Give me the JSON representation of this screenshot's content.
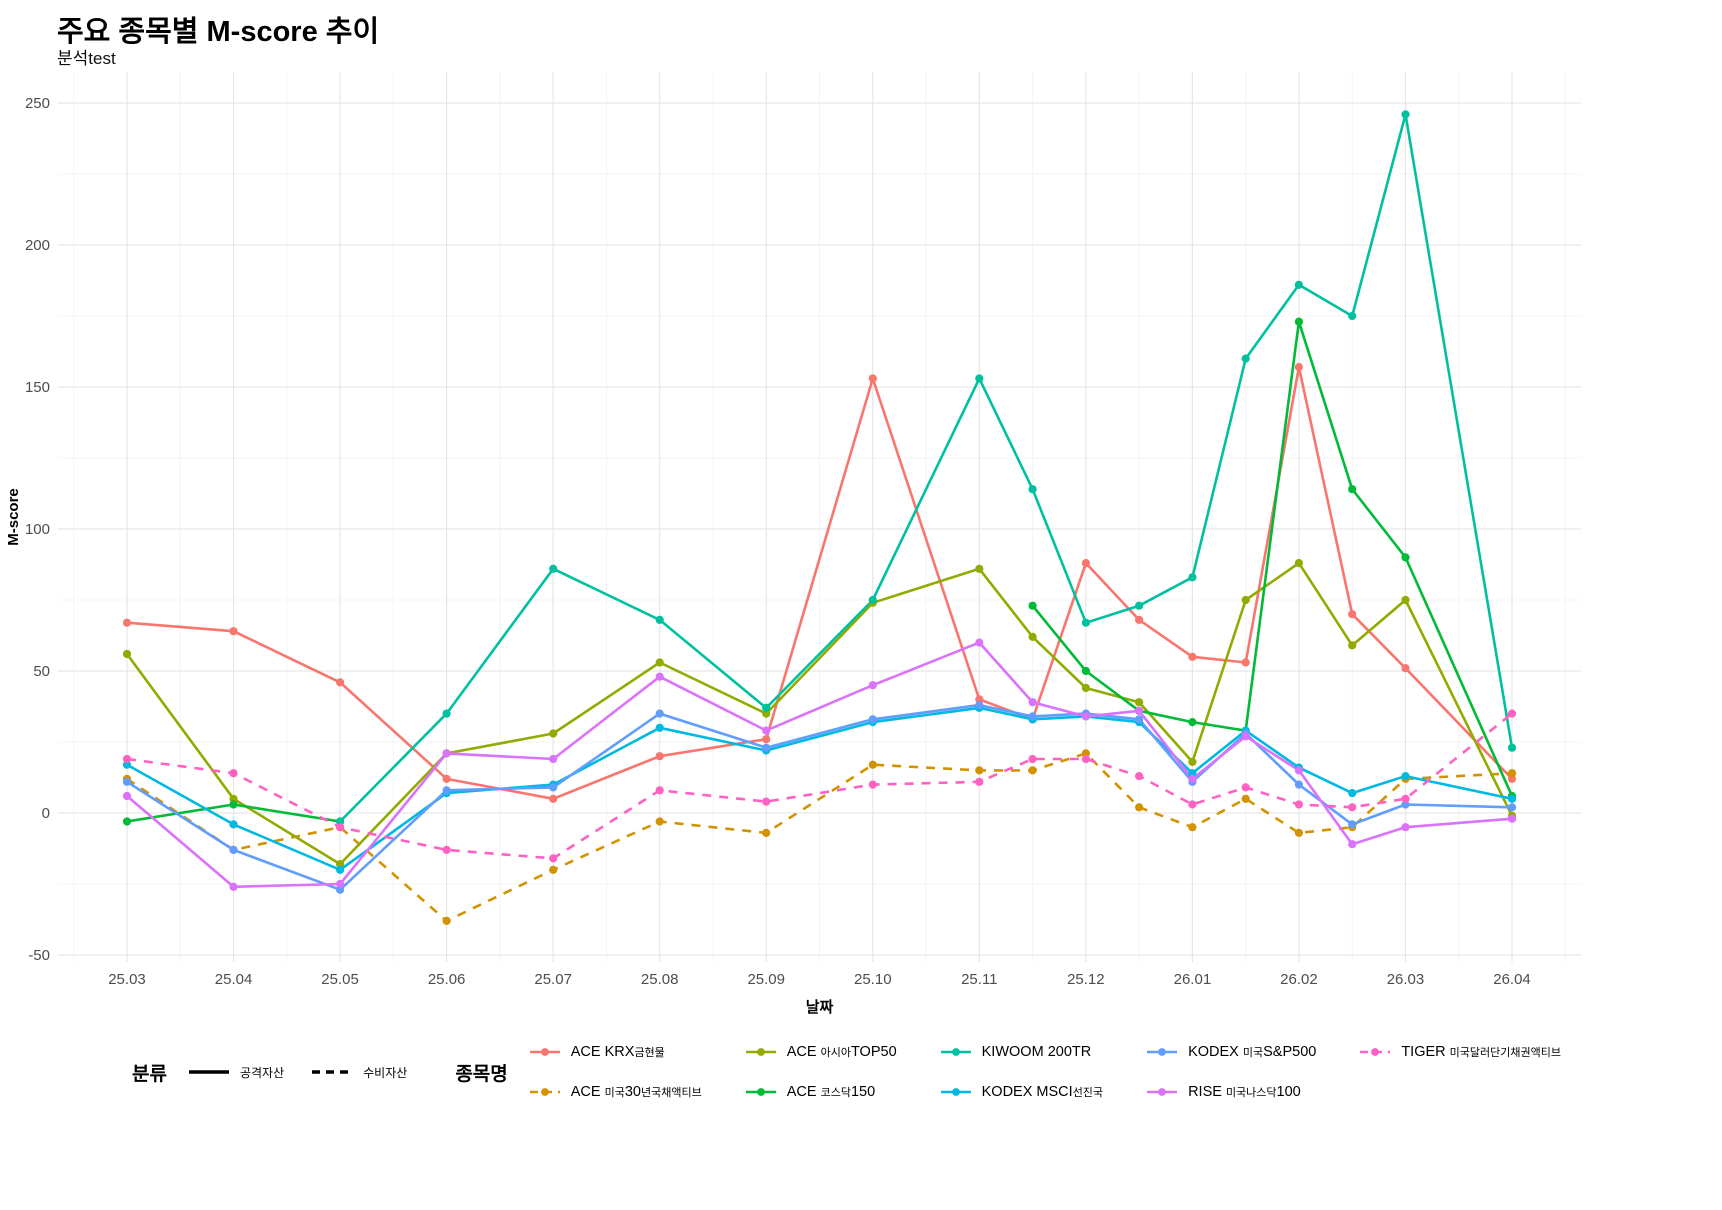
{
  "title": "주요 종목별 M-score 추이",
  "subtitle": "분석test",
  "chart_data": {
    "type": "line",
    "title": "주요 종목별 M-score 추이",
    "subtitle": "분석test",
    "x_label": "날짜",
    "y_label": "M-score",
    "x_tick_labels": [
      "25.03",
      "25.04",
      "25.05",
      "25.06",
      "25.07",
      "25.08",
      "25.09",
      "25.10",
      "25.11",
      "25.12",
      "26.01",
      "26.02",
      "26.03",
      "26.04"
    ],
    "y_ticks": [
      -50,
      0,
      50,
      100,
      150,
      200,
      250
    ],
    "y_range": [
      -50,
      250
    ],
    "grid": "on",
    "legend_position": "bottom",
    "x_note": "x = month index, 0 = 25.03 ... 13 = 26.04, half steps are mid-month readings",
    "series": [
      {
        "name": "ACE KRX금현물",
        "category": "공격자산",
        "dashed": false,
        "color": "#F8766D",
        "points": [
          [
            0,
            67
          ],
          [
            1,
            64
          ],
          [
            2,
            46
          ],
          [
            3,
            12
          ],
          [
            4,
            5
          ],
          [
            5,
            20
          ],
          [
            6,
            26
          ],
          [
            7,
            153
          ],
          [
            8,
            40
          ],
          [
            8.5,
            33
          ],
          [
            9,
            88
          ],
          [
            9.5,
            68
          ],
          [
            10,
            55
          ],
          [
            10.5,
            53
          ],
          [
            11,
            157
          ],
          [
            11.5,
            70
          ],
          [
            12,
            51
          ],
          [
            13,
            12
          ]
        ]
      },
      {
        "name": "ACE 미국30년국채액티브",
        "category": "수비자산",
        "dashed": true,
        "color": "#D39200",
        "points": [
          [
            0,
            12
          ],
          [
            1,
            -13
          ],
          [
            2,
            -5
          ],
          [
            3,
            -38
          ],
          [
            4,
            -20
          ],
          [
            5,
            -3
          ],
          [
            6,
            -7
          ],
          [
            7,
            17
          ],
          [
            8,
            15
          ],
          [
            8.5,
            15
          ],
          [
            9,
            21
          ],
          [
            9.5,
            2
          ],
          [
            10,
            -5
          ],
          [
            10.5,
            5
          ],
          [
            11,
            -7
          ],
          [
            11.5,
            -5
          ],
          [
            12,
            12
          ],
          [
            13,
            14
          ]
        ]
      },
      {
        "name": "ACE 아시아TOP50",
        "category": "공격자산",
        "dashed": false,
        "color": "#93AA00",
        "points": [
          [
            0,
            56
          ],
          [
            1,
            5
          ],
          [
            2,
            -18
          ],
          [
            3,
            21
          ],
          [
            4,
            28
          ],
          [
            5,
            53
          ],
          [
            6,
            35
          ],
          [
            7,
            74
          ],
          [
            8,
            86
          ],
          [
            8.5,
            62
          ],
          [
            9,
            44
          ],
          [
            9.5,
            39
          ],
          [
            10,
            18
          ],
          [
            10.5,
            75
          ],
          [
            11,
            88
          ],
          [
            11.5,
            59
          ],
          [
            12,
            75
          ],
          [
            13,
            -1
          ]
        ]
      },
      {
        "name": "ACE 코스닥150",
        "category": "공격자산",
        "dashed": false,
        "color": "#00BA38",
        "points": [
          [
            0,
            -3
          ],
          [
            1,
            3
          ],
          [
            2,
            -3
          ],
          [
            8.5,
            73
          ],
          [
            9,
            50
          ],
          [
            9.5,
            36
          ],
          [
            10,
            32
          ],
          [
            10.5,
            29
          ],
          [
            11,
            173
          ],
          [
            11.5,
            114
          ],
          [
            12,
            90
          ],
          [
            13,
            6
          ]
        ]
      },
      {
        "name": "KIWOOM 200TR",
        "category": "공격자산",
        "dashed": false,
        "color": "#00C19F",
        "points": [
          [
            2,
            -3
          ],
          [
            3,
            35
          ],
          [
            4,
            86
          ],
          [
            5,
            68
          ],
          [
            6,
            37
          ],
          [
            7,
            75
          ],
          [
            8,
            153
          ],
          [
            8.5,
            114
          ],
          [
            9,
            67
          ],
          [
            9.5,
            73
          ],
          [
            10,
            83
          ],
          [
            10.5,
            160
          ],
          [
            11,
            186
          ],
          [
            11.5,
            175
          ],
          [
            12,
            246
          ],
          [
            13,
            23
          ]
        ]
      },
      {
        "name": "KODEX MSCI선진국",
        "category": "공격자산",
        "dashed": false,
        "color": "#00B9E3",
        "points": [
          [
            0,
            17
          ],
          [
            1,
            -4
          ],
          [
            2,
            -20
          ],
          [
            3,
            7
          ],
          [
            4,
            10
          ],
          [
            5,
            30
          ],
          [
            6,
            22
          ],
          [
            7,
            32
          ],
          [
            8,
            37
          ],
          [
            8.5,
            33
          ],
          [
            9,
            34
          ],
          [
            9.5,
            32
          ],
          [
            10,
            14
          ],
          [
            10.5,
            29
          ],
          [
            11,
            16
          ],
          [
            11.5,
            7
          ],
          [
            12,
            13
          ],
          [
            13,
            5
          ]
        ]
      },
      {
        "name": "KODEX 미국S&P500",
        "category": "공격자산",
        "dashed": false,
        "color": "#619CFF",
        "points": [
          [
            0,
            11
          ],
          [
            1,
            -13
          ],
          [
            2,
            -27
          ],
          [
            3,
            8
          ],
          [
            4,
            9
          ],
          [
            5,
            35
          ],
          [
            6,
            23
          ],
          [
            7,
            33
          ],
          [
            8,
            38
          ],
          [
            8.5,
            34
          ],
          [
            9,
            35
          ],
          [
            9.5,
            33
          ],
          [
            10,
            11
          ],
          [
            10.5,
            28
          ],
          [
            11,
            10
          ],
          [
            11.5,
            -4
          ],
          [
            12,
            3
          ],
          [
            13,
            2
          ]
        ]
      },
      {
        "name": "RISE 미국나스닥100",
        "category": "공격자산",
        "dashed": false,
        "color": "#DB72FB",
        "points": [
          [
            0,
            6
          ],
          [
            1,
            -26
          ],
          [
            2,
            -25
          ],
          [
            3,
            21
          ],
          [
            4,
            19
          ],
          [
            5,
            48
          ],
          [
            6,
            29
          ],
          [
            7,
            45
          ],
          [
            8,
            60
          ],
          [
            8.5,
            39
          ],
          [
            9,
            34
          ],
          [
            9.5,
            36
          ],
          [
            10,
            12
          ],
          [
            10.5,
            27
          ],
          [
            11,
            15
          ],
          [
            11.5,
            -11
          ],
          [
            12,
            -5
          ],
          [
            13,
            -2
          ]
        ]
      },
      {
        "name": "TIGER 미국달러단기채권액티브",
        "category": "수비자산",
        "dashed": true,
        "color": "#FF61C3",
        "points": [
          [
            0,
            19
          ],
          [
            1,
            14
          ],
          [
            2,
            -5
          ],
          [
            3,
            -13
          ],
          [
            4,
            -16
          ],
          [
            5,
            8
          ],
          [
            6,
            4
          ],
          [
            7,
            10
          ],
          [
            8,
            11
          ],
          [
            8.5,
            19
          ],
          [
            9,
            19
          ],
          [
            9.5,
            13
          ],
          [
            10,
            3
          ],
          [
            10.5,
            9
          ],
          [
            11,
            3
          ],
          [
            11.5,
            2
          ],
          [
            12,
            5
          ],
          [
            13,
            35
          ]
        ]
      }
    ]
  },
  "legend": {
    "category": {
      "title": "분류",
      "items": [
        {
          "label": "공격자산",
          "dashed": false
        },
        {
          "label": "수비자산",
          "dashed": true
        }
      ]
    },
    "series": {
      "title": "종목명",
      "items": [
        {
          "series": "ACE KRX금현물",
          "color": "#F8766D",
          "dashed": false,
          "parts": [
            {
              "t": "ACE KRX"
            },
            {
              "t": "금현물",
              "small": true
            }
          ]
        },
        {
          "series": "ACE 미국30년국채액티브",
          "color": "#D39200",
          "dashed": true,
          "parts": [
            {
              "t": "ACE "
            },
            {
              "t": "미국",
              "small": true
            },
            {
              "t": "30"
            },
            {
              "t": "년국채액티브",
              "small": true
            }
          ]
        },
        {
          "series": "ACE 아시아TOP50",
          "color": "#93AA00",
          "dashed": false,
          "parts": [
            {
              "t": "ACE "
            },
            {
              "t": "아시아",
              "small": true
            },
            {
              "t": "TOP50"
            }
          ]
        },
        {
          "series": "ACE 코스닥150",
          "color": "#00BA38",
          "dashed": false,
          "parts": [
            {
              "t": "ACE "
            },
            {
              "t": "코스닥",
              "small": true
            },
            {
              "t": "150"
            }
          ]
        },
        {
          "series": "KIWOOM 200TR",
          "color": "#00C19F",
          "dashed": false,
          "parts": [
            {
              "t": "KIWOOM 200TR"
            }
          ]
        },
        {
          "series": "KODEX MSCI선진국",
          "color": "#00B9E3",
          "dashed": false,
          "parts": [
            {
              "t": "KODEX MSCI"
            },
            {
              "t": "선진국",
              "small": true
            }
          ]
        },
        {
          "series": "KODEX 미국S&P500",
          "color": "#619CFF",
          "dashed": false,
          "parts": [
            {
              "t": "KODEX "
            },
            {
              "t": "미국",
              "small": true
            },
            {
              "t": "S&P500"
            }
          ]
        },
        {
          "series": "RISE 미국나스닥100",
          "color": "#DB72FB",
          "dashed": false,
          "parts": [
            {
              "t": "RISE "
            },
            {
              "t": "미국나스닥",
              "small": true
            },
            {
              "t": "100"
            }
          ]
        },
        {
          "series": "TIGER 미국달러단기채권액티브",
          "color": "#FF61C3",
          "dashed": true,
          "parts": [
            {
              "t": "TIGER "
            },
            {
              "t": "미국달러단기채권액티브",
              "small": true
            }
          ]
        }
      ]
    }
  }
}
